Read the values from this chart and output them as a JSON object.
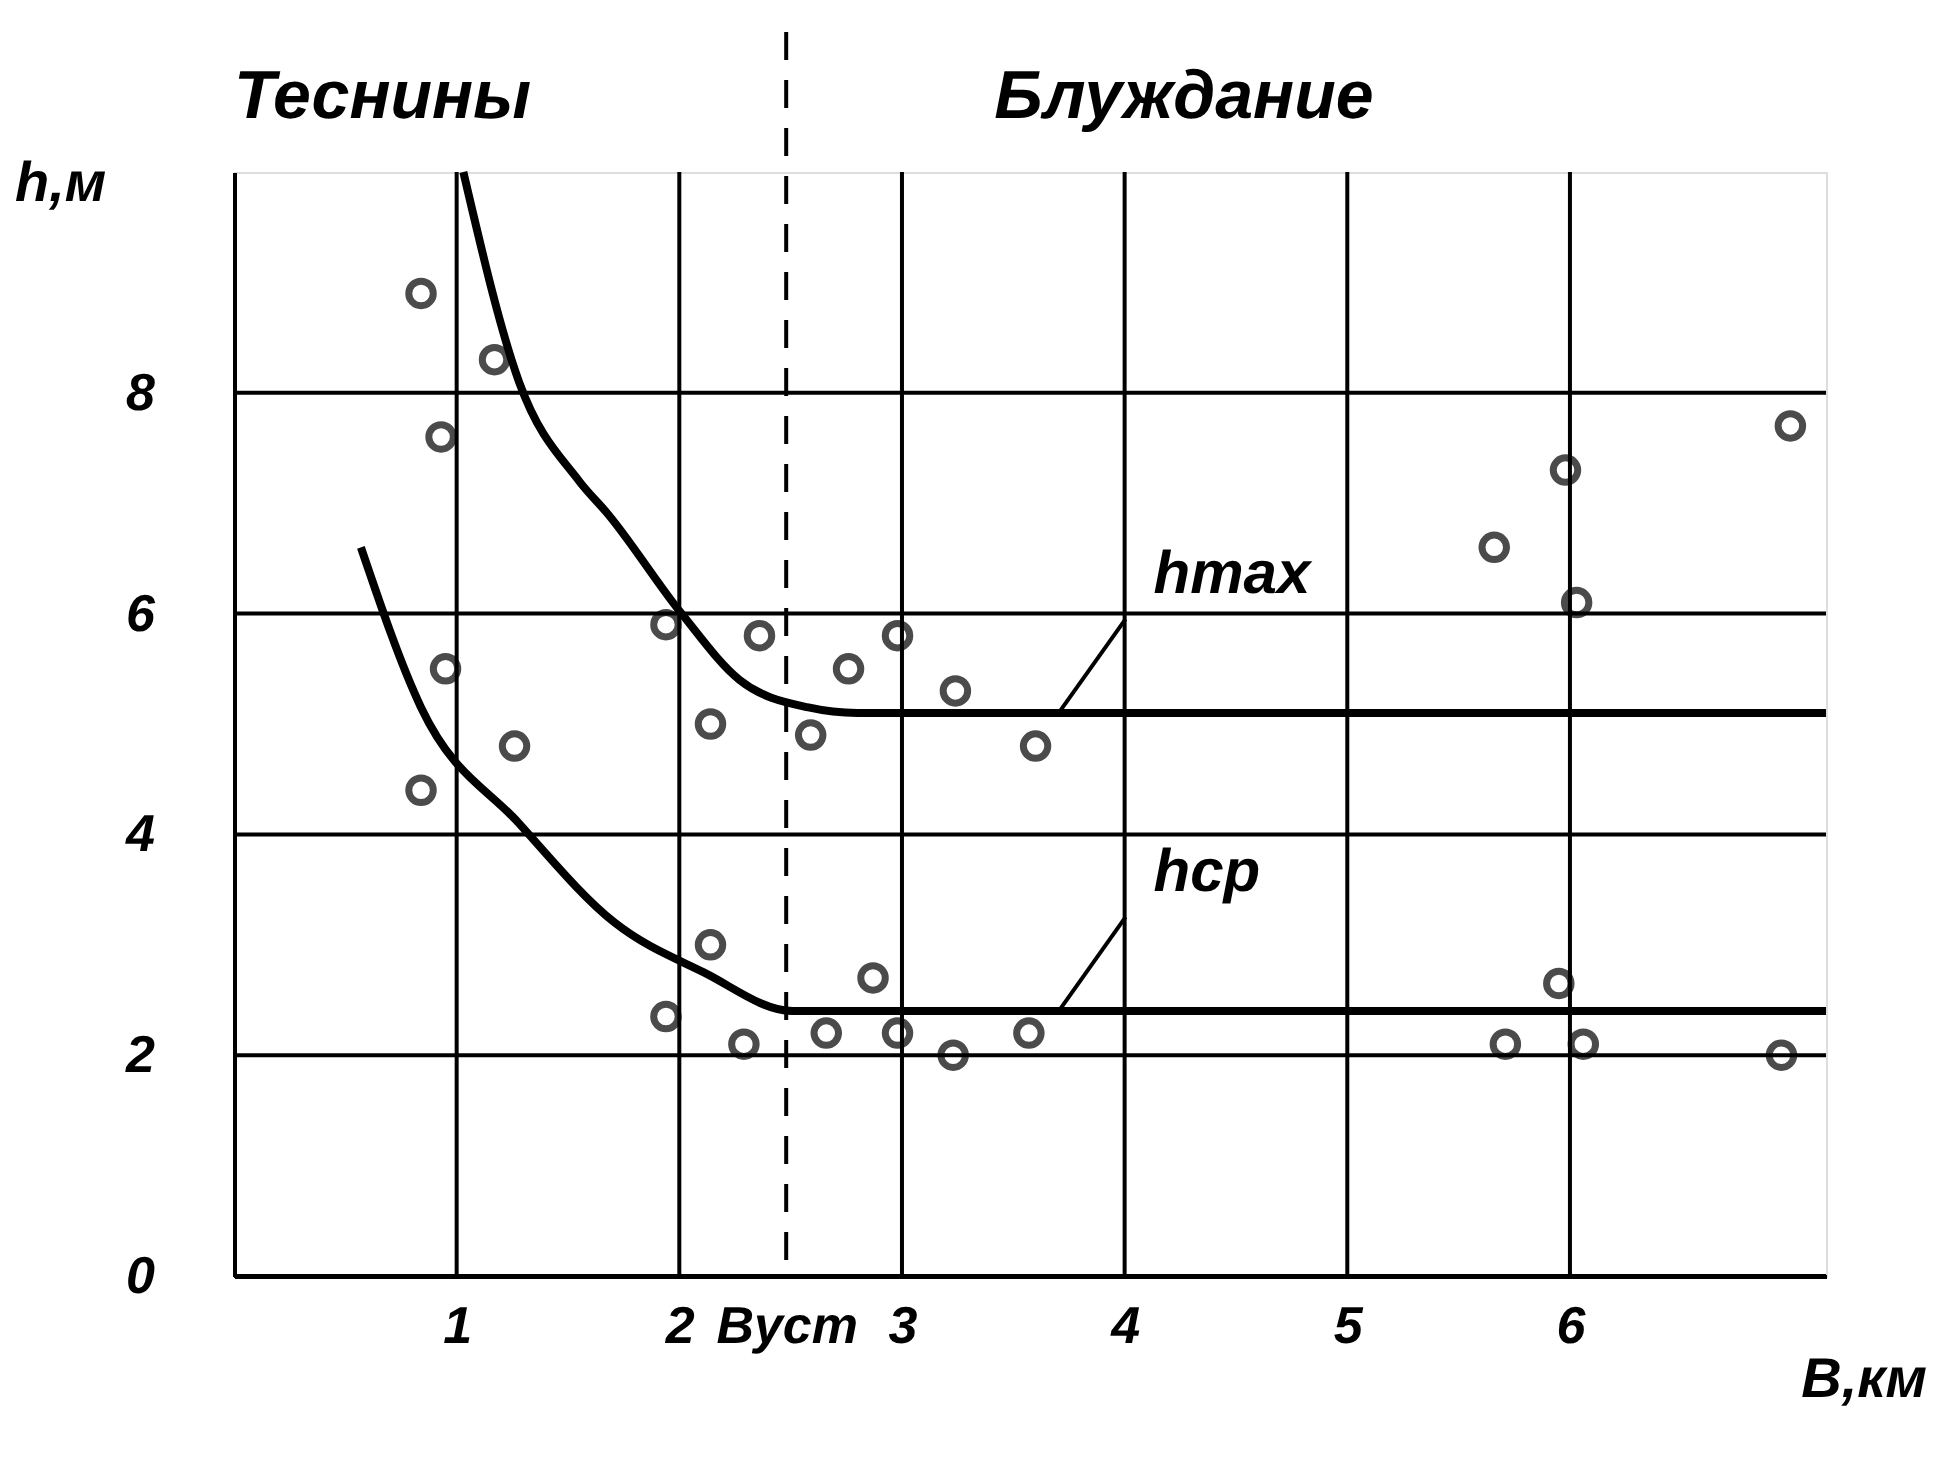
{
  "chart_data": {
    "type": "scatter",
    "xlabel": "B,км",
    "ylabel": "h,м",
    "annotations": [
      "Теснины",
      "Блуждание"
    ],
    "xlim": [
      0,
      7.15
    ],
    "ylim": [
      0,
      10
    ],
    "xticks": [
      1,
      2,
      {
        "value": 2.48,
        "label": "Bуст"
      },
      3,
      4,
      5,
      6
    ],
    "yticks": [
      0,
      2,
      4,
      6,
      8
    ],
    "grid": true,
    "legend": false,
    "marker": "circle",
    "ref_lines": [
      {
        "axis": "x",
        "value": 2.48,
        "line_style": "dashed",
        "color": "#000000"
      }
    ],
    "series": [
      {
        "type": "scatter",
        "color": "#000000",
        "x": [
          0.84,
          1.17,
          0.93,
          0.95,
          1.26,
          0.84,
          1.94,
          2.14,
          2.36,
          2.59,
          2.76,
          2.98,
          3.24,
          3.6,
          5.66,
          5.98,
          6.03,
          6.99,
          2.14,
          1.94,
          2.29,
          2.87,
          2.66,
          2.98,
          3.23,
          3.57,
          5.71,
          5.95,
          6.06,
          6.95
        ],
        "values": [
          8.9,
          8.3,
          7.6,
          5.5,
          4.8,
          4.4,
          5.9,
          5.0,
          5.8,
          4.9,
          5.5,
          5.8,
          5.3,
          4.8,
          6.6,
          7.3,
          6.1,
          7.7,
          3.0,
          2.35,
          2.1,
          2.7,
          2.2,
          2.2,
          2.0,
          2.2,
          2.1,
          2.65,
          2.1,
          2.0
        ]
      },
      {
        "type": "line",
        "name": "hmax",
        "color": "#000000",
        "marker": "none",
        "x": [
          1.03,
          1.28,
          1.55,
          1.68,
          2.01,
          2.27,
          2.58,
          2.8,
          7.15
        ],
        "values": [
          10.0,
          8.1,
          7.2,
          6.9,
          6.0,
          5.4,
          5.15,
          5.1,
          5.1
        ]
      },
      {
        "type": "line",
        "name": "hср",
        "color": "#000000",
        "marker": "none",
        "x": [
          0.57,
          0.84,
          1.28,
          1.71,
          2.11,
          2.51,
          2.8,
          7.15
        ],
        "values": [
          6.6,
          5.15,
          4.1,
          3.2,
          2.75,
          2.4,
          2.4,
          2.4
        ]
      }
    ]
  }
}
